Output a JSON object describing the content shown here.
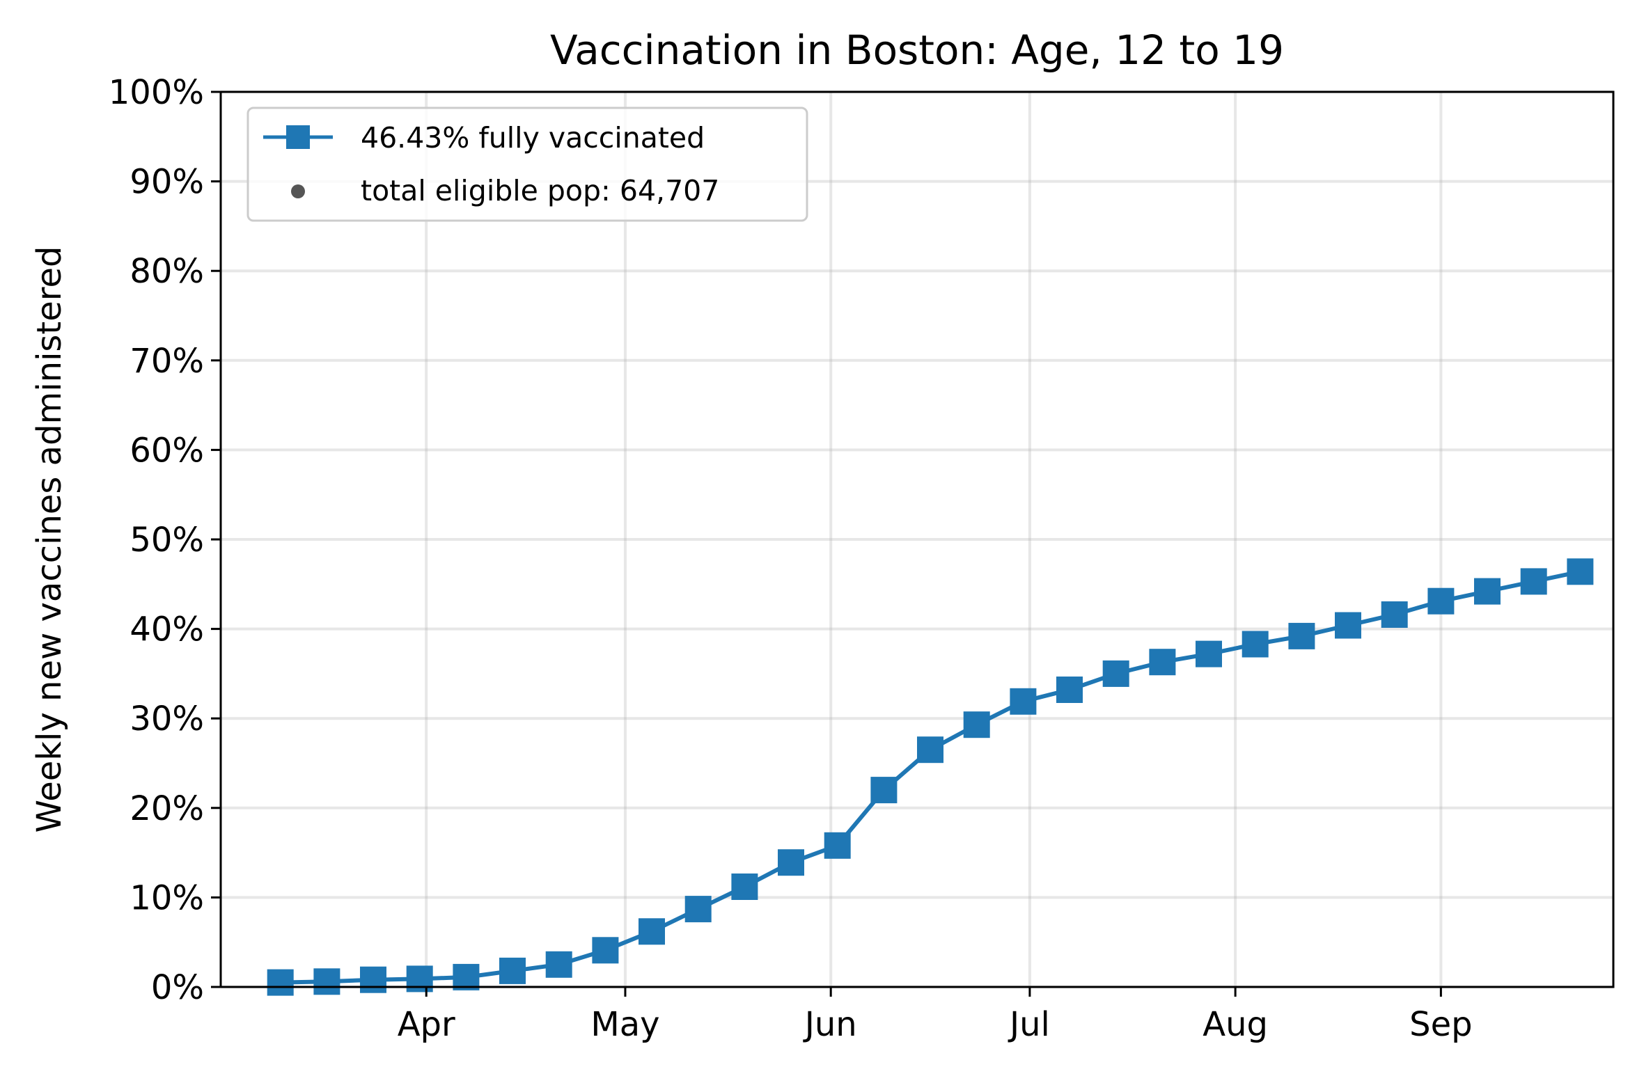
{
  "chart_data": {
    "type": "line",
    "title": "Vaccination in Boston: Age, 12 to 19",
    "ylabel": "Weekly new vaccines administered",
    "xlabel": "",
    "ylim": [
      0,
      100
    ],
    "y_tick_labels": [
      "0%",
      "10%",
      "20%",
      "30%",
      "40%",
      "50%",
      "60%",
      "70%",
      "80%",
      "90%",
      "100%"
    ],
    "y_ticks": [
      0,
      10,
      20,
      30,
      40,
      50,
      60,
      70,
      80,
      90,
      100
    ],
    "x_range": [
      "2021-03-01",
      "2021-09-27"
    ],
    "x_ticks": [
      "2021-04-01",
      "2021-05-01",
      "2021-06-01",
      "2021-07-01",
      "2021-08-01",
      "2021-09-01"
    ],
    "x_tick_labels": [
      "Apr",
      "May",
      "Jun",
      "Jul",
      "Aug",
      "Sep"
    ],
    "grid": true,
    "legend_position": "top-left",
    "series": [
      {
        "name": "46.43% fully vaccinated",
        "color": "#1f77b4",
        "marker": "square",
        "x": [
          "2021-03-10",
          "2021-03-17",
          "2021-03-24",
          "2021-03-31",
          "2021-04-07",
          "2021-04-14",
          "2021-04-21",
          "2021-04-28",
          "2021-05-05",
          "2021-05-12",
          "2021-05-19",
          "2021-05-26",
          "2021-06-02",
          "2021-06-09",
          "2021-06-16",
          "2021-06-23",
          "2021-06-30",
          "2021-07-07",
          "2021-07-14",
          "2021-07-21",
          "2021-07-28",
          "2021-08-04",
          "2021-08-11",
          "2021-08-18",
          "2021-08-25",
          "2021-09-01",
          "2021-09-08",
          "2021-09-15",
          "2021-09-22"
        ],
        "values": [
          0.5,
          0.6,
          0.8,
          0.9,
          1.1,
          1.8,
          2.5,
          4.1,
          6.2,
          8.7,
          11.2,
          13.9,
          15.8,
          22.0,
          26.5,
          29.3,
          31.9,
          33.2,
          35.0,
          36.3,
          37.2,
          38.3,
          39.2,
          40.4,
          41.6,
          43.1,
          44.2,
          45.3,
          46.4
        ]
      }
    ],
    "legend": [
      {
        "label": "46.43% fully vaccinated",
        "marker": "square-line",
        "color": "#1f77b4"
      },
      {
        "label": "total eligible pop: 64,707",
        "marker": "dot",
        "color": "#555555"
      }
    ]
  }
}
